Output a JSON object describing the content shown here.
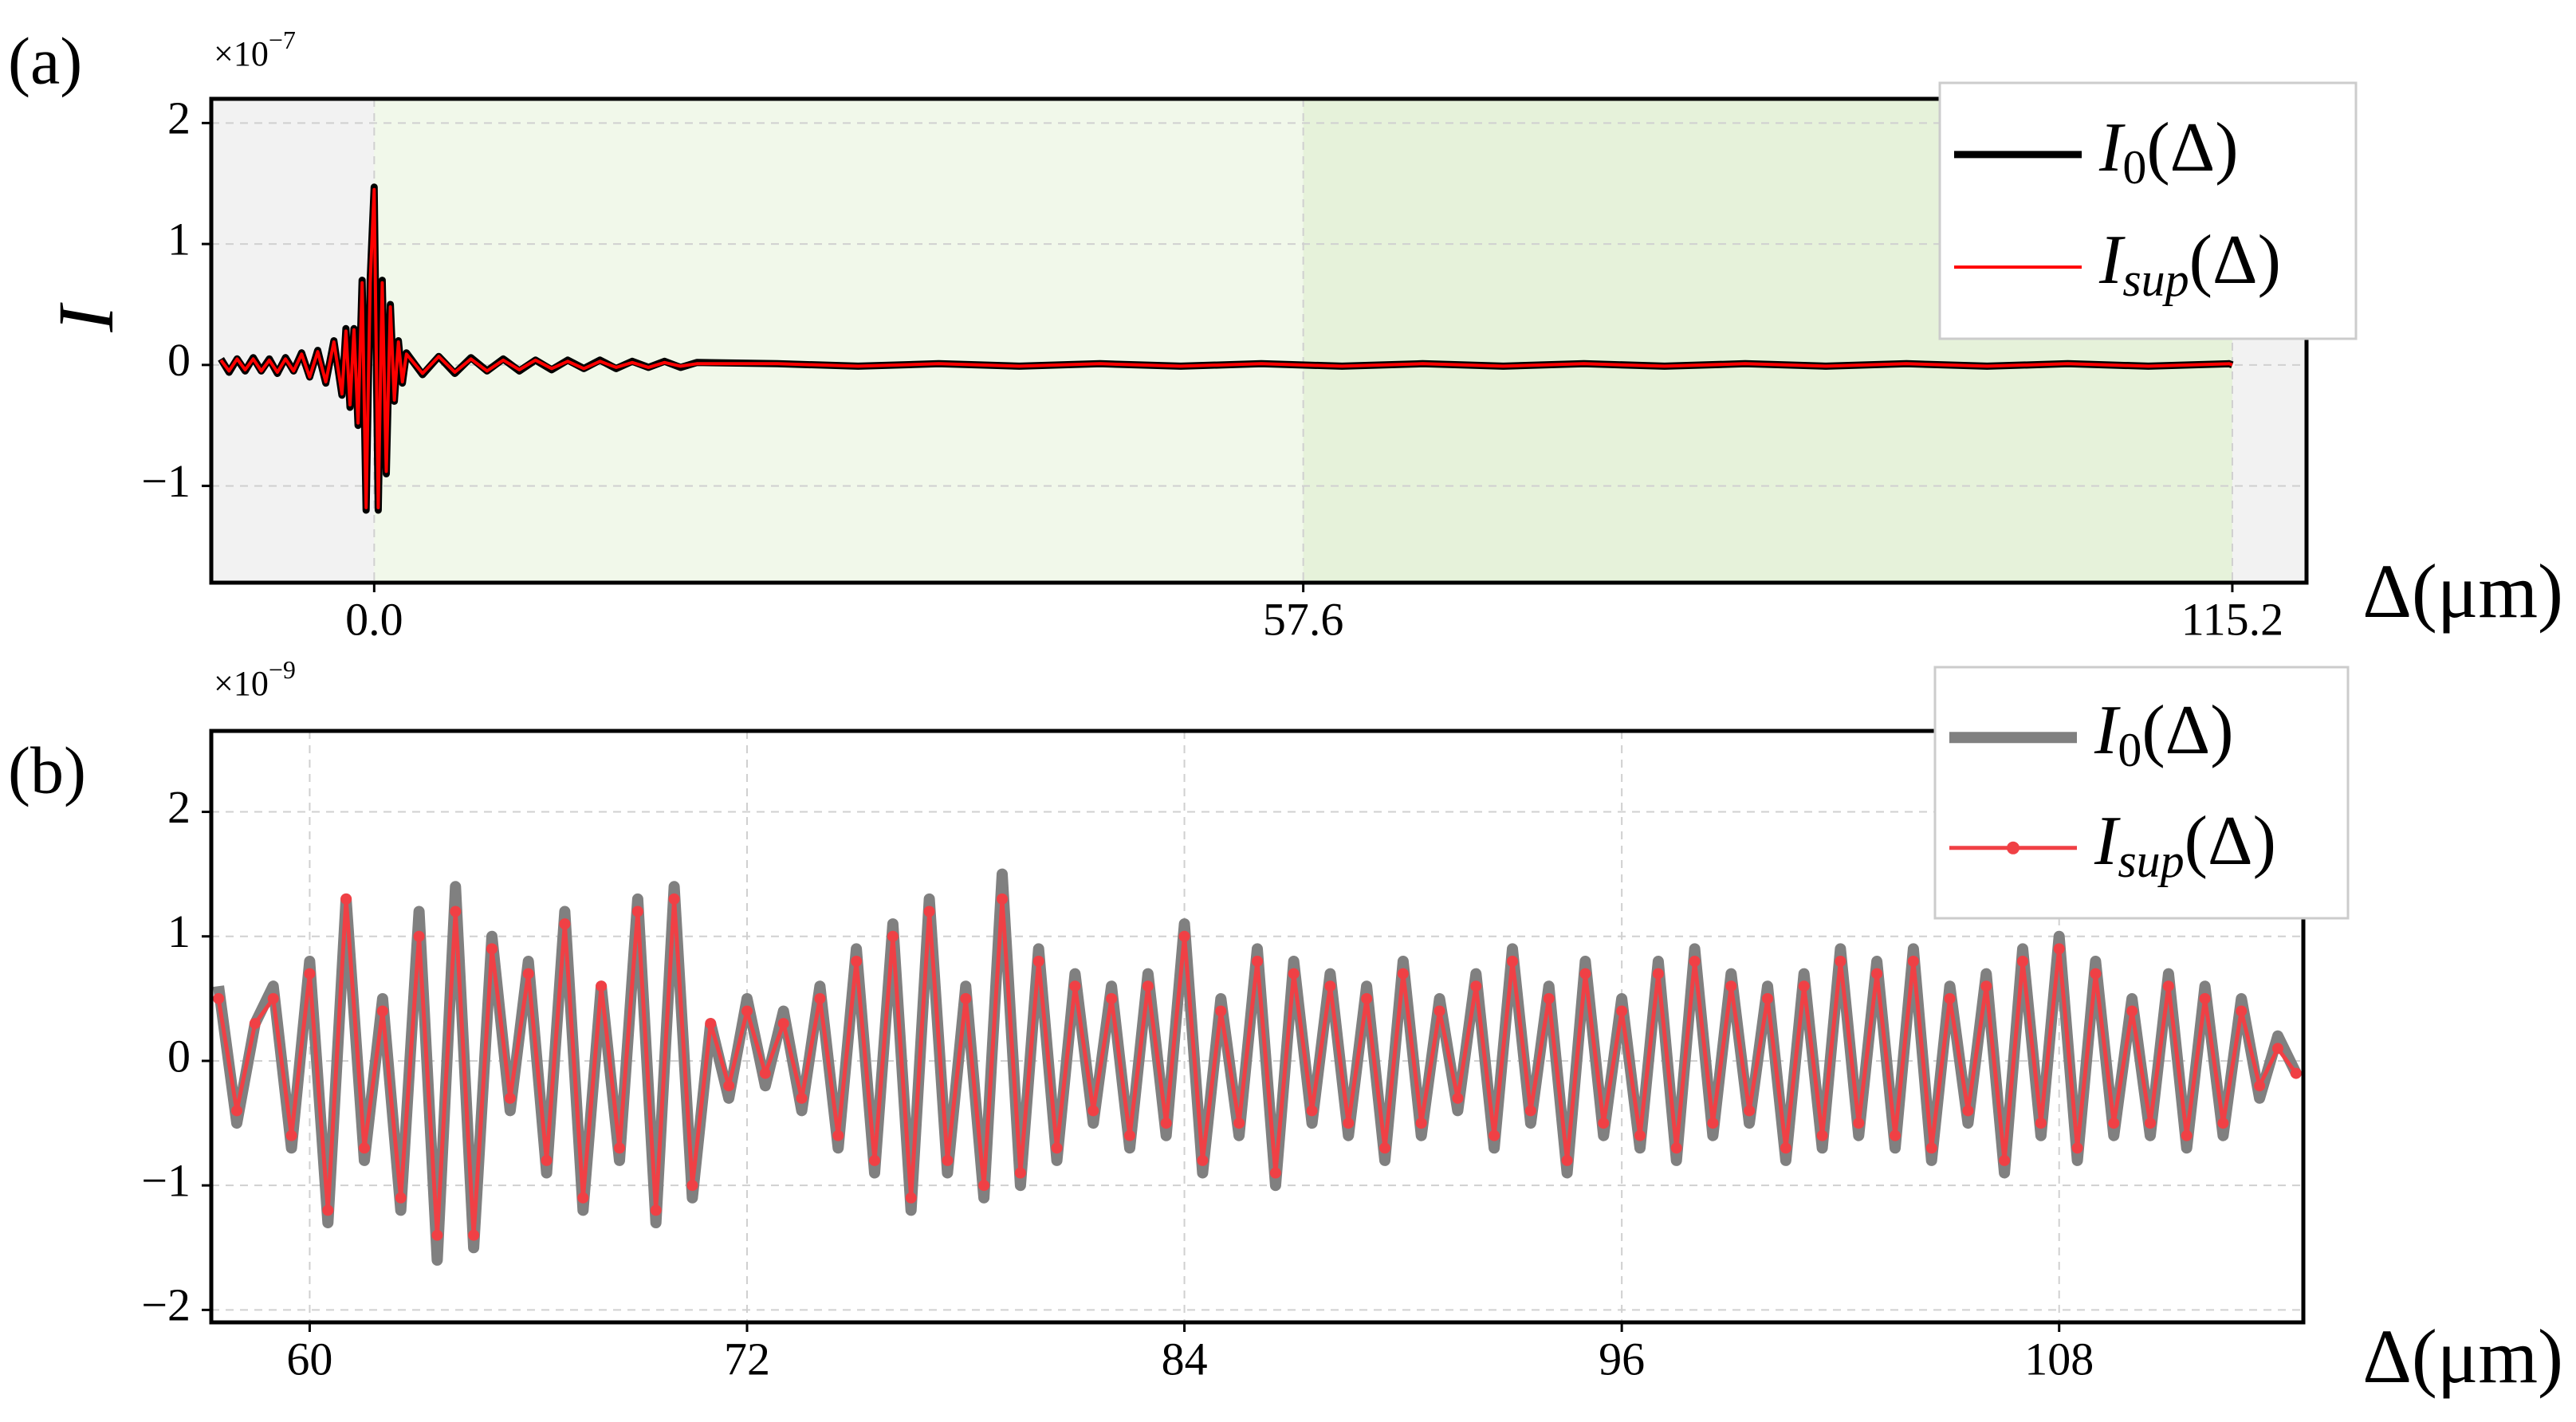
{
  "chart_data": [
    {
      "type": "line",
      "panel_label": "(a)",
      "offset_base": "×10",
      "offset_exponent": "−7",
      "ylabel": "I",
      "xlabel": "Δ(μm)",
      "xlim": [
        -10.1,
        119.8
      ],
      "ylim": [
        -1.8,
        2.2
      ],
      "xticks": [
        {
          "value": 0,
          "label": "0.0"
        },
        57.6,
        115.2
      ],
      "yticks": [
        {
          "value": -1,
          "label": "−1"
        },
        0,
        1,
        2
      ],
      "grid": true,
      "legend": "upper right",
      "background": "#f2f2f2",
      "spans": [
        {
          "range": [
            0,
            57.6
          ],
          "color": "#f1f8ea"
        },
        {
          "range": [
            57.6,
            115.2
          ],
          "color": "#e6f2da"
        }
      ],
      "x": [
        -9.5,
        -9,
        -8.5,
        -8,
        -7.5,
        -7,
        -6.5,
        -6,
        -5.5,
        -5,
        -4.5,
        -4,
        -3.5,
        -3,
        -2.5,
        -2,
        -1.75,
        -1.5,
        -1.25,
        -1,
        -0.75,
        -0.5,
        -0.25,
        0,
        0.25,
        0.5,
        0.75,
        1,
        1.25,
        1.5,
        1.75,
        2,
        3,
        4,
        5,
        6,
        7,
        8,
        9,
        10,
        11,
        12,
        13,
        14,
        15,
        16,
        17,
        18,
        19,
        20,
        25,
        30,
        35,
        40,
        45,
        50,
        55,
        60,
        65,
        70,
        75,
        80,
        85,
        90,
        95,
        100,
        105,
        110,
        115,
        115.2
      ],
      "series": [
        {
          "name": {
            "symbol": "I",
            "subscript": "0",
            "argument": "(Δ)"
          },
          "color": "#000000",
          "width": 9,
          "values": [
            0.05,
            -0.06,
            0.05,
            -0.05,
            0.06,
            -0.05,
            0.05,
            -0.07,
            0.06,
            -0.05,
            0.1,
            -0.1,
            0.12,
            -0.15,
            0.2,
            -0.25,
            0.3,
            -0.35,
            0.3,
            -0.5,
            0.7,
            -1.2,
            0.7,
            1.47,
            -1.2,
            0.7,
            -0.9,
            0.5,
            -0.3,
            0.2,
            -0.15,
            0.1,
            -0.08,
            0.07,
            -0.07,
            0.06,
            -0.05,
            0.05,
            -0.05,
            0.04,
            -0.04,
            0.04,
            -0.03,
            0.04,
            -0.03,
            0.03,
            -0.02,
            0.03,
            -0.02,
            0.02,
            0.01,
            -0.01,
            0.01,
            -0.01,
            0.01,
            -0.01,
            0.01,
            -0.01,
            0.01,
            -0.01,
            0.01,
            -0.01,
            0.01,
            -0.01,
            0.01,
            -0.01,
            0.01,
            -0.01,
            0.01,
            0
          ]
        },
        {
          "name": {
            "symbol": "I",
            "subscript": "sup",
            "argument": "(Δ)"
          },
          "color": "#ff0000",
          "width": 4,
          "values": [
            0.04,
            -0.05,
            0.05,
            -0.04,
            0.05,
            -0.05,
            0.04,
            -0.06,
            0.05,
            -0.05,
            0.09,
            -0.1,
            0.11,
            -0.14,
            0.19,
            -0.24,
            0.28,
            -0.33,
            0.29,
            -0.48,
            0.68,
            -1.18,
            0.68,
            1.45,
            -1.18,
            0.68,
            -0.88,
            0.48,
            -0.29,
            0.19,
            -0.14,
            0.09,
            -0.07,
            0.07,
            -0.06,
            0.05,
            -0.05,
            0.04,
            -0.04,
            0.04,
            -0.03,
            0.03,
            -0.03,
            0.03,
            -0.02,
            0.02,
            -0.02,
            0.02,
            -0.01,
            0.01,
            0.01,
            -0.01,
            0.01,
            -0.01,
            0.01,
            -0.01,
            0.01,
            -0.01,
            0.01,
            -0.01,
            0.01,
            -0.01,
            0.01,
            -0.01,
            0.01,
            -0.01,
            0.01,
            -0.01,
            0.01,
            0
          ]
        }
      ]
    },
    {
      "type": "line",
      "panel_label": "(b)",
      "offset_base": "×10",
      "offset_exponent": "−9",
      "xlabel": "Δ(μm)",
      "xlim": [
        57.3,
        114.7
      ],
      "ylim": [
        -2.1,
        2.65
      ],
      "xticks": [
        60,
        72,
        84,
        96,
        108
      ],
      "yticks": [
        {
          "value": -2,
          "label": "−2"
        },
        {
          "value": -1,
          "label": "−1"
        },
        0,
        1,
        2
      ],
      "grid": true,
      "legend": "upper right",
      "background": "#ffffff",
      "x": [
        57.5,
        58,
        58.5,
        59,
        59.5,
        60,
        60.5,
        61,
        61.5,
        62,
        62.5,
        63,
        63.5,
        64,
        64.5,
        65,
        65.5,
        66,
        66.5,
        67,
        67.5,
        68,
        68.5,
        69,
        69.5,
        70,
        70.5,
        71,
        71.5,
        72,
        72.5,
        73,
        73.5,
        74,
        74.5,
        75,
        75.5,
        76,
        76.5,
        77,
        77.5,
        78,
        78.5,
        79,
        79.5,
        80,
        80.5,
        81,
        81.5,
        82,
        82.5,
        83,
        83.5,
        84,
        84.5,
        85,
        85.5,
        86,
        86.5,
        87,
        87.5,
        88,
        88.5,
        89,
        89.5,
        90,
        90.5,
        91,
        91.5,
        92,
        92.5,
        93,
        93.5,
        94,
        94.5,
        95,
        95.5,
        96,
        96.5,
        97,
        97.5,
        98,
        98.5,
        99,
        99.5,
        100,
        100.5,
        101,
        101.5,
        102,
        102.5,
        103,
        103.5,
        104,
        104.5,
        105,
        105.5,
        106,
        106.5,
        107,
        107.5,
        108,
        108.5,
        109,
        109.5,
        110,
        110.5,
        111,
        111.5,
        112,
        112.5,
        113,
        113.5,
        114,
        114.5
      ],
      "series": [
        {
          "name": {
            "symbol": "I",
            "subscript": "0",
            "argument": "(Δ)"
          },
          "color": "#808080",
          "width": 14,
          "values": [
            0.6,
            -0.5,
            0.3,
            0.6,
            -0.7,
            0.8,
            -1.3,
            1.3,
            -0.8,
            0.5,
            -1.2,
            1.2,
            -1.6,
            1.4,
            -1.5,
            1.0,
            -0.4,
            0.8,
            -0.9,
            1.2,
            -1.2,
            0.6,
            -0.8,
            1.3,
            -1.3,
            1.4,
            -1.1,
            0.3,
            -0.3,
            0.5,
            -0.2,
            0.4,
            -0.4,
            0.6,
            -0.7,
            0.9,
            -0.9,
            1.1,
            -1.2,
            1.3,
            -0.9,
            0.6,
            -1.1,
            1.5,
            -1.0,
            0.9,
            -0.8,
            0.7,
            -0.5,
            0.6,
            -0.7,
            0.7,
            -0.6,
            1.1,
            -0.9,
            0.5,
            -0.6,
            0.9,
            -1.0,
            0.8,
            -0.5,
            0.7,
            -0.6,
            0.6,
            -0.8,
            0.8,
            -0.6,
            0.5,
            -0.4,
            0.7,
            -0.7,
            0.9,
            -0.5,
            0.6,
            -0.9,
            0.8,
            -0.6,
            0.5,
            -0.7,
            0.8,
            -0.8,
            0.9,
            -0.6,
            0.7,
            -0.5,
            0.6,
            -0.8,
            0.7,
            -0.7,
            0.9,
            -0.6,
            0.8,
            -0.7,
            0.9,
            -0.8,
            0.6,
            -0.5,
            0.7,
            -0.9,
            0.9,
            -0.6,
            1.0,
            -0.8,
            0.8,
            -0.6,
            0.5,
            -0.6,
            0.7,
            -0.7,
            0.6,
            -0.6,
            0.5,
            -0.3,
            0.2,
            -0.1
          ]
        },
        {
          "name": {
            "symbol": "I",
            "subscript": "sup",
            "argument": "(Δ)"
          },
          "color": "#f04045",
          "width": 5,
          "marker": "o",
          "values": [
            0.5,
            -0.4,
            0.3,
            0.5,
            -0.6,
            0.7,
            -1.2,
            1.3,
            -0.7,
            0.4,
            -1.1,
            1.0,
            -1.4,
            1.2,
            -1.4,
            0.9,
            -0.3,
            0.7,
            -0.8,
            1.1,
            -1.1,
            0.6,
            -0.7,
            1.2,
            -1.2,
            1.3,
            -1.0,
            0.3,
            -0.2,
            0.4,
            -0.1,
            0.3,
            -0.3,
            0.5,
            -0.6,
            0.8,
            -0.8,
            1.0,
            -1.1,
            1.2,
            -0.8,
            0.5,
            -1.0,
            1.3,
            -0.9,
            0.8,
            -0.7,
            0.6,
            -0.4,
            0.5,
            -0.6,
            0.6,
            -0.5,
            1.0,
            -0.8,
            0.4,
            -0.5,
            0.8,
            -0.9,
            0.7,
            -0.4,
            0.6,
            -0.5,
            0.5,
            -0.7,
            0.7,
            -0.5,
            0.4,
            -0.3,
            0.6,
            -0.6,
            0.8,
            -0.4,
            0.5,
            -0.8,
            0.7,
            -0.5,
            0.4,
            -0.6,
            0.7,
            -0.7,
            0.8,
            -0.5,
            0.6,
            -0.4,
            0.5,
            -0.7,
            0.6,
            -0.6,
            0.8,
            -0.5,
            0.7,
            -0.6,
            0.8,
            -0.7,
            0.5,
            -0.4,
            0.6,
            -0.8,
            0.8,
            -0.5,
            0.9,
            -0.7,
            0.7,
            -0.5,
            0.4,
            -0.5,
            0.6,
            -0.6,
            0.5,
            -0.5,
            0.4,
            -0.2,
            0.1,
            -0.1
          ]
        }
      ]
    }
  ]
}
